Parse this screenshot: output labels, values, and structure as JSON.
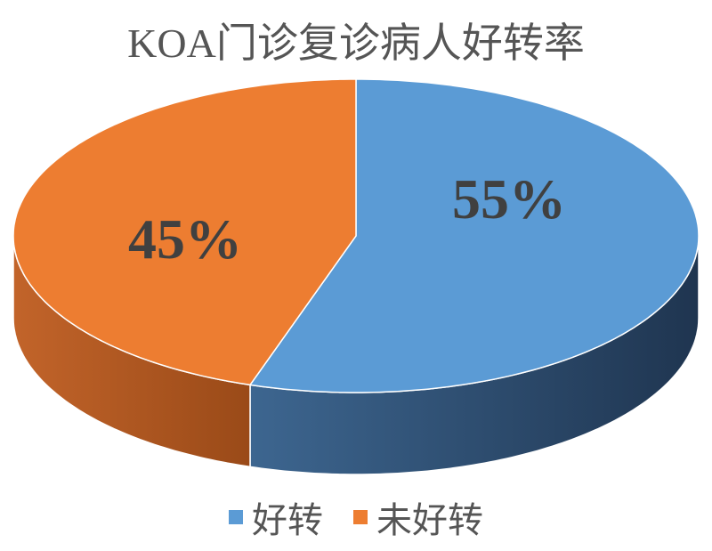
{
  "chart_data": {
    "type": "pie",
    "title": "KOA门诊复诊病人好转率",
    "categories": [
      "好转",
      "未好转"
    ],
    "values": [
      55,
      45
    ],
    "data_labels": [
      "55%",
      "45%"
    ],
    "colors": [
      "#5B9BD5",
      "#ED7D31"
    ],
    "side_colors": [
      "#2C4966",
      "#B25A1E"
    ],
    "style": "3d",
    "legend_position": "bottom"
  }
}
